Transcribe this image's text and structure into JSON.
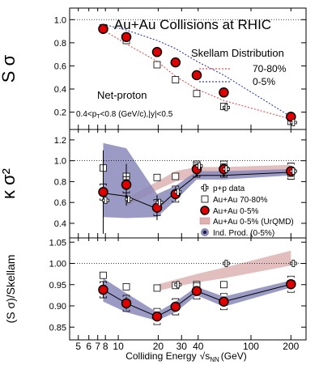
{
  "chart_data": [
    {
      "type": "scatter",
      "panel": "top",
      "ylabel": "S σ",
      "ylim": [
        0.05,
        1.1
      ],
      "yticks": [
        0.2,
        0.4,
        0.6,
        0.8,
        1.0
      ],
      "ytick_labels": [
        "0.2",
        "0.4",
        "0.6",
        "0.8",
        "1.0"
      ],
      "reference_line": 1.0,
      "title": "Au+Au Collisions at RHIC",
      "legend_title": "Skellam Distribution",
      "annotation": "Net-proton",
      "annotation_cut": "0.4<p",
      "annotation_cut_sub": "T",
      "annotation_cut_rest": "<0.8 (GeV/c),|y|<0.5",
      "series": [
        {
          "name": "70-80%",
          "kind": "dashed-line",
          "color": "#e05050",
          "x": [
            7.7,
            11.5,
            19.6,
            27,
            39,
            62.4,
            200
          ],
          "values": [
            0.91,
            0.79,
            0.64,
            0.51,
            0.4,
            0.3,
            0.14
          ]
        },
        {
          "name": "0-5%",
          "kind": "dashed-line",
          "color": "#3040b0",
          "x": [
            7.7,
            11.5,
            19.6,
            27,
            39,
            62.4,
            200
          ],
          "values": [
            0.96,
            0.91,
            0.82,
            0.75,
            0.64,
            0.52,
            0.16
          ]
        },
        {
          "kind": "open-square",
          "x": [
            7.7,
            11.5,
            19.6,
            27,
            39,
            62.4,
            200
          ],
          "values": [
            0.93,
            0.82,
            0.61,
            0.48,
            0.36,
            0.25,
            0.12
          ]
        },
        {
          "kind": "red-circle",
          "x": [
            7.7,
            11.5,
            19.6,
            27,
            39,
            62.4,
            200
          ],
          "values": [
            0.92,
            0.85,
            0.72,
            0.63,
            0.52,
            0.37,
            0.16
          ]
        },
        {
          "kind": "open-cross",
          "x": [
            62.4,
            200
          ],
          "values": [
            0.24,
            0.11
          ]
        }
      ]
    },
    {
      "type": "scatter",
      "panel": "middle",
      "ylabel": "κ σ²",
      "ylim": [
        0.26,
        1.3
      ],
      "yticks": [
        0.4,
        0.6,
        0.8,
        1.0,
        1.2
      ],
      "ytick_labels": [
        "0.4",
        "0.6",
        "0.8",
        "1.0",
        "1.2"
      ],
      "reference_line": 1.0,
      "legend": [
        "p+p data",
        "Au+Au 70-80%",
        "Au+Au 0-5%",
        "Au+Au 0-5% (UrQMD)",
        "Ind. Prod. (0-5%)"
      ],
      "band_ind_prod": {
        "x": [
          7.7,
          11.5,
          19.6,
          27,
          39,
          62.4,
          200
        ],
        "low": [
          0.46,
          0.45,
          0.46,
          0.62,
          0.82,
          0.82,
          0.86
        ],
        "high": [
          1.17,
          1.12,
          0.68,
          0.76,
          0.9,
          0.9,
          0.92
        ],
        "center": [
          0.69,
          0.66,
          0.54,
          0.7,
          0.86,
          0.86,
          0.89
        ],
        "color": "#8888bb"
      },
      "band_urqmd": {
        "x": [
          11.5,
          19.6,
          27,
          39,
          62.4,
          200
        ],
        "low": [
          0.56,
          0.72,
          0.8,
          0.84,
          0.86,
          0.9
        ],
        "high": [
          0.64,
          0.8,
          0.9,
          0.94,
          0.94,
          0.96
        ],
        "color": "#d8a8a8"
      },
      "series": [
        {
          "name": "Au+Au 70-80%",
          "kind": "open-square",
          "x": [
            7.7,
            11.5,
            19.6,
            27,
            39,
            62.4,
            200
          ],
          "values": [
            0.93,
            0.85,
            0.84,
            0.85,
            0.95,
            0.94,
            0.88
          ]
        },
        {
          "name": "Au+Au 0-5%",
          "kind": "red-circle",
          "x": [
            7.7,
            11.5,
            19.6,
            27,
            39,
            62.4,
            200
          ],
          "values": [
            0.7,
            0.77,
            0.55,
            0.68,
            0.92,
            0.92,
            0.9
          ],
          "err": [
            0.4,
            0.2,
            0.12,
            0.07,
            0.05,
            0.05,
            0.03
          ]
        },
        {
          "name": "p+p data",
          "kind": "open-cross",
          "x": [
            7.7,
            11.5,
            19.6,
            27,
            39,
            62.4,
            200
          ],
          "values": [
            0.62,
            0.63,
            0.6,
            0.7,
            0.95,
            0.92,
            0.9
          ]
        }
      ]
    },
    {
      "type": "scatter",
      "panel": "bottom",
      "ylabel": "(S σ)/Skellam",
      "xlabel": "Colliding Energy",
      "xlabel_unit": "(GeV)",
      "ylim": [
        0.82,
        1.06
      ],
      "yticks": [
        0.85,
        0.9,
        0.95,
        1.0,
        1.05
      ],
      "ytick_labels": [
        "0.85",
        "0.90",
        "0.95",
        "1.00",
        "1.05"
      ],
      "reference_line": 1.0,
      "xscale": "log",
      "xlim": [
        4.3,
        260
      ],
      "xticks": [
        5,
        6,
        7,
        8,
        10,
        20,
        30,
        40,
        100,
        200
      ],
      "xtick_labels": [
        "5",
        "6",
        "7",
        "8",
        "10",
        "20",
        "30",
        "40",
        "100",
        "200"
      ],
      "band_ind_prod": {
        "x": [
          7.7,
          11.5,
          19.6,
          27,
          39,
          62.4,
          200
        ],
        "low": [
          0.91,
          0.885,
          0.865,
          0.885,
          0.925,
          0.898,
          0.943
        ],
        "high": [
          0.965,
          0.93,
          0.885,
          0.91,
          0.945,
          0.922,
          0.96
        ],
        "center": [
          0.938,
          0.906,
          0.875,
          0.898,
          0.935,
          0.91,
          0.951
        ],
        "color": "#8888bb"
      },
      "band_urqmd": {
        "x": [
          19.6,
          27,
          39,
          62.4,
          200
        ],
        "low": [
          0.935,
          0.945,
          0.955,
          0.965,
          0.995
        ],
        "high": [
          0.95,
          0.962,
          0.975,
          0.99,
          1.03
        ],
        "color": "#d8a8a8"
      },
      "series": [
        {
          "kind": "open-square",
          "x": [
            7.7,
            11.5,
            19.6,
            27,
            39,
            62.4,
            200
          ],
          "values": [
            0.972,
            0.945,
            0.942,
            0.948,
            0.95,
            0.95,
            0.952
          ]
        },
        {
          "kind": "red-circle",
          "x": [
            7.7,
            11.5,
            19.6,
            27,
            39,
            62.4,
            200
          ],
          "values": [
            0.938,
            0.906,
            0.875,
            0.898,
            0.935,
            0.91,
            0.951
          ],
          "err": [
            0.02,
            0.015,
            0.01,
            0.01,
            0.008,
            0.012,
            0.01
          ]
        },
        {
          "kind": "open-cross",
          "x": [
            27,
            62.4,
            200
          ],
          "values": [
            0.95,
            1.0,
            1.0
          ]
        }
      ]
    }
  ]
}
